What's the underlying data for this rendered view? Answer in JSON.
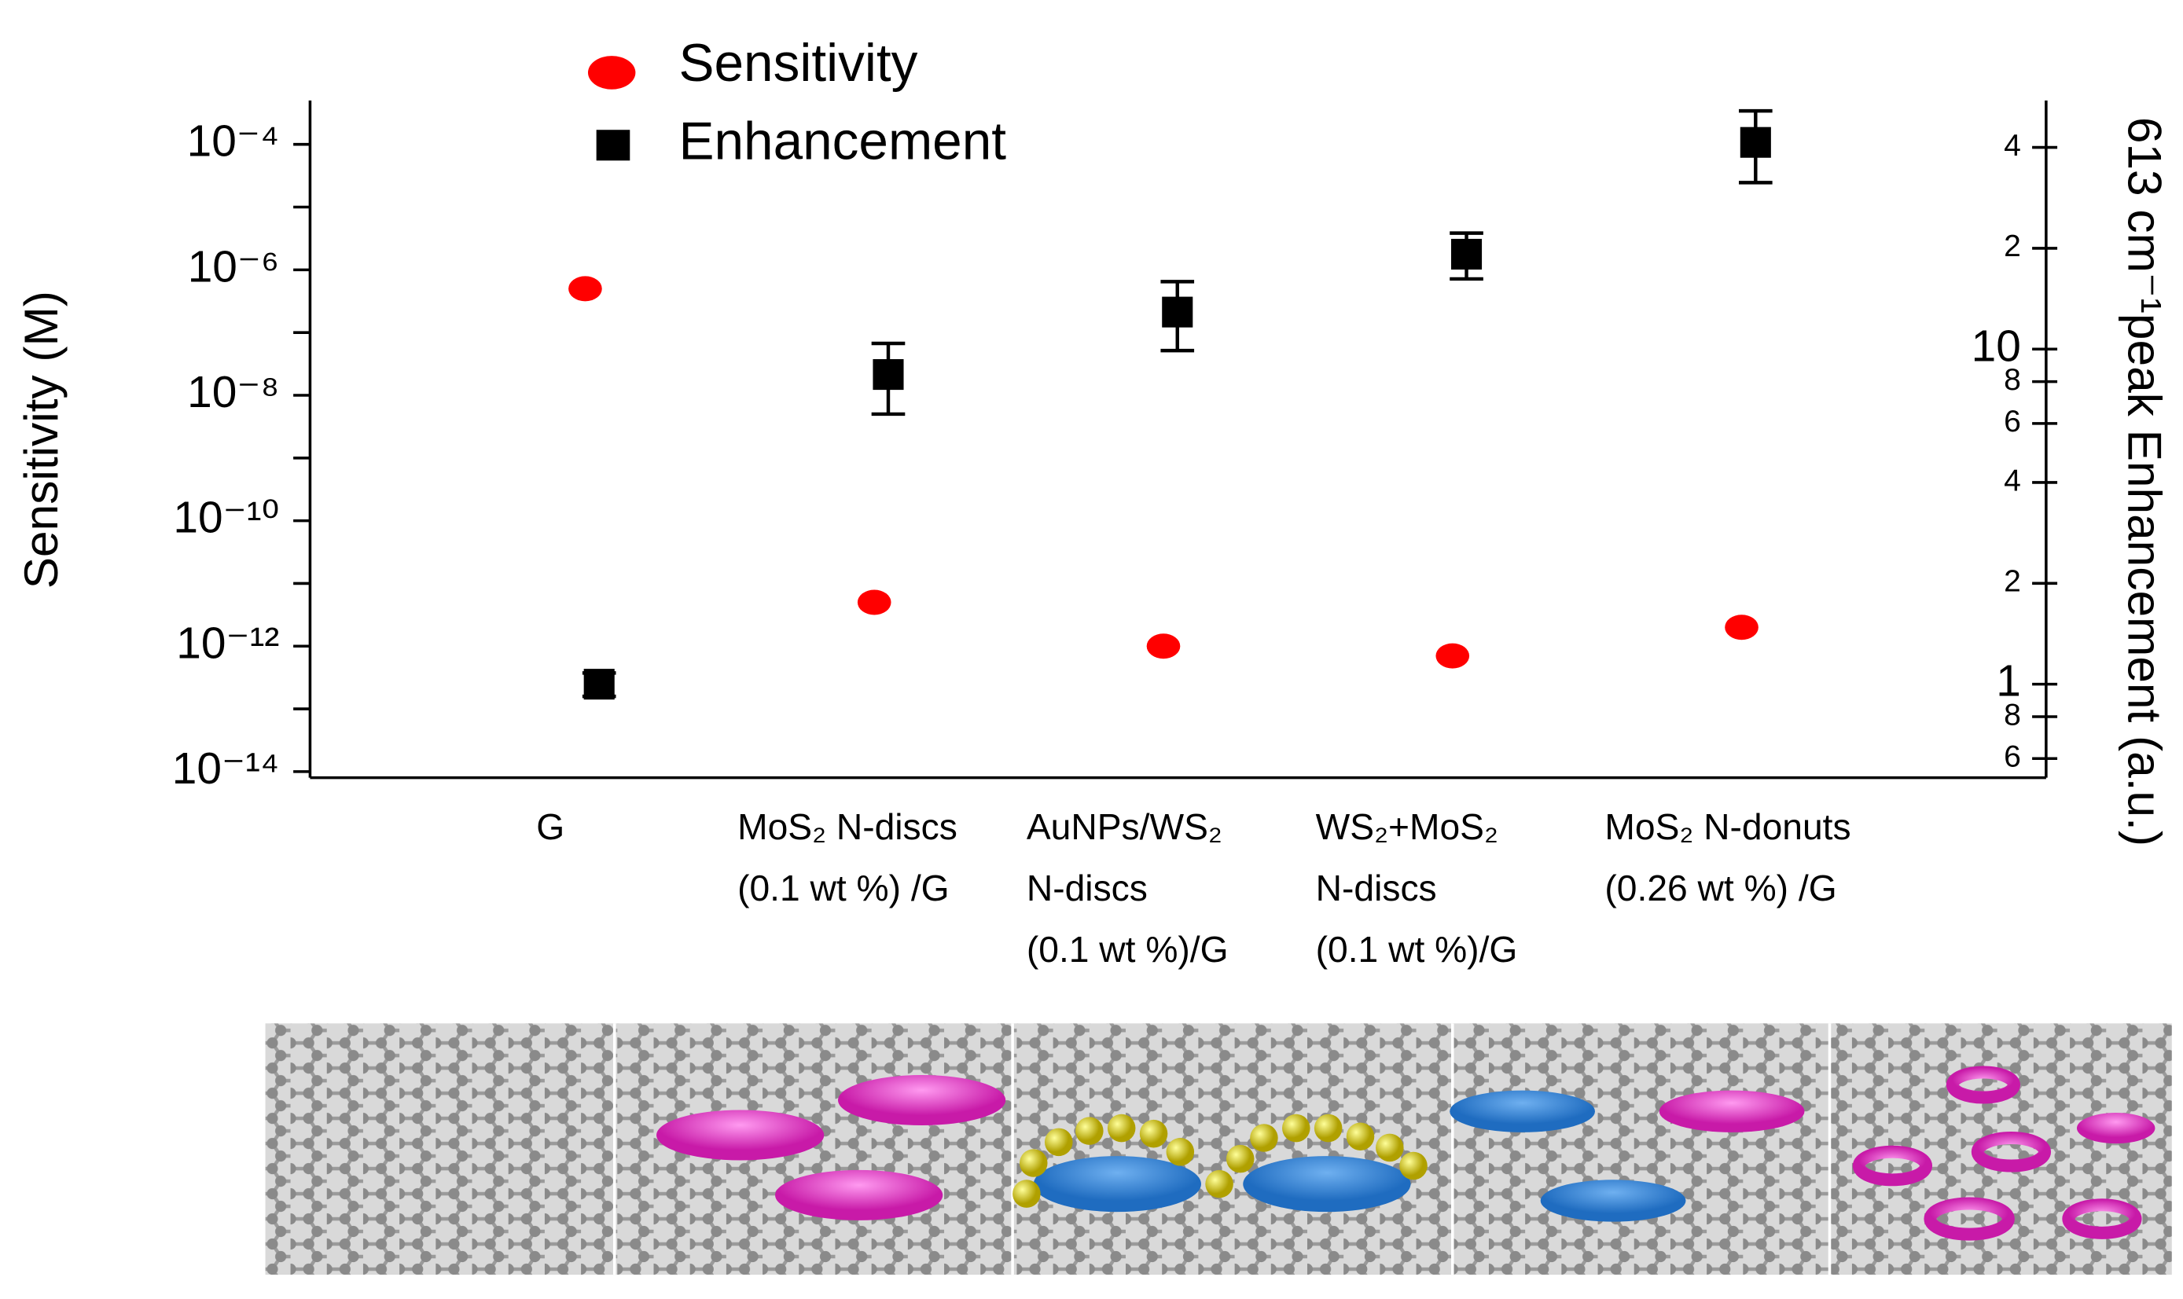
{
  "chart_data": {
    "type": "scatter",
    "categories": [
      "G",
      "MoS₂ N-discs\n(0.1 wt %) /G",
      "AuNPs/WS₂\n N-discs\n(0.1 wt %)/G",
      "WS₂+MoS₂\nN-discs\n(0.1 wt %)/G",
      "MoS₂ N-donuts\n(0.26 wt %) /G"
    ],
    "y_label": "Sensitivity (M)",
    "y2_label": "613 cm⁻¹peak Enhancement (a.u.)",
    "log_y": true,
    "log_y2": true,
    "ylim": [
      8e-15,
      0.0005
    ],
    "yticks": [
      {
        "value": 1e-14,
        "label": "10⁻¹⁴"
      },
      {
        "value": 1e-12,
        "label": "10⁻¹²"
      },
      {
        "value": 1e-10,
        "label": "10⁻¹⁰"
      },
      {
        "value": 1e-08,
        "label": "10⁻⁸"
      },
      {
        "value": 1e-06,
        "label": "10⁻⁶"
      },
      {
        "value": 0.0001,
        "label": "10⁻⁴"
      }
    ],
    "yminorticks": [
      1e-13,
      1e-11,
      1e-09,
      1e-07,
      1e-05
    ],
    "y2lim": [
      0.526,
      55.2
    ],
    "y2ticks": [
      {
        "value": 0.6,
        "label": "6"
      },
      {
        "value": 0.8,
        "label": "8"
      },
      1,
      2,
      4,
      6,
      8,
      10,
      {
        "value": 20,
        "label": "2"
      },
      {
        "value": 40,
        "label": "4"
      }
    ],
    "legend": "top",
    "series": [
      {
        "name": "Sensitivity",
        "color": "#ff0000",
        "marker": "ellipse",
        "values": [
          5e-07,
          5e-12,
          1e-12,
          7e-13,
          2e-12
        ]
      },
      {
        "name": "Enhancement",
        "color": "#000000",
        "marker": "square",
        "axis": "y2",
        "values": [
          1.0,
          8.4,
          12.9,
          19.2,
          41.4
        ],
        "errors": [
          0.08,
          2,
          3,
          3,
          10
        ]
      }
    ]
  }
}
